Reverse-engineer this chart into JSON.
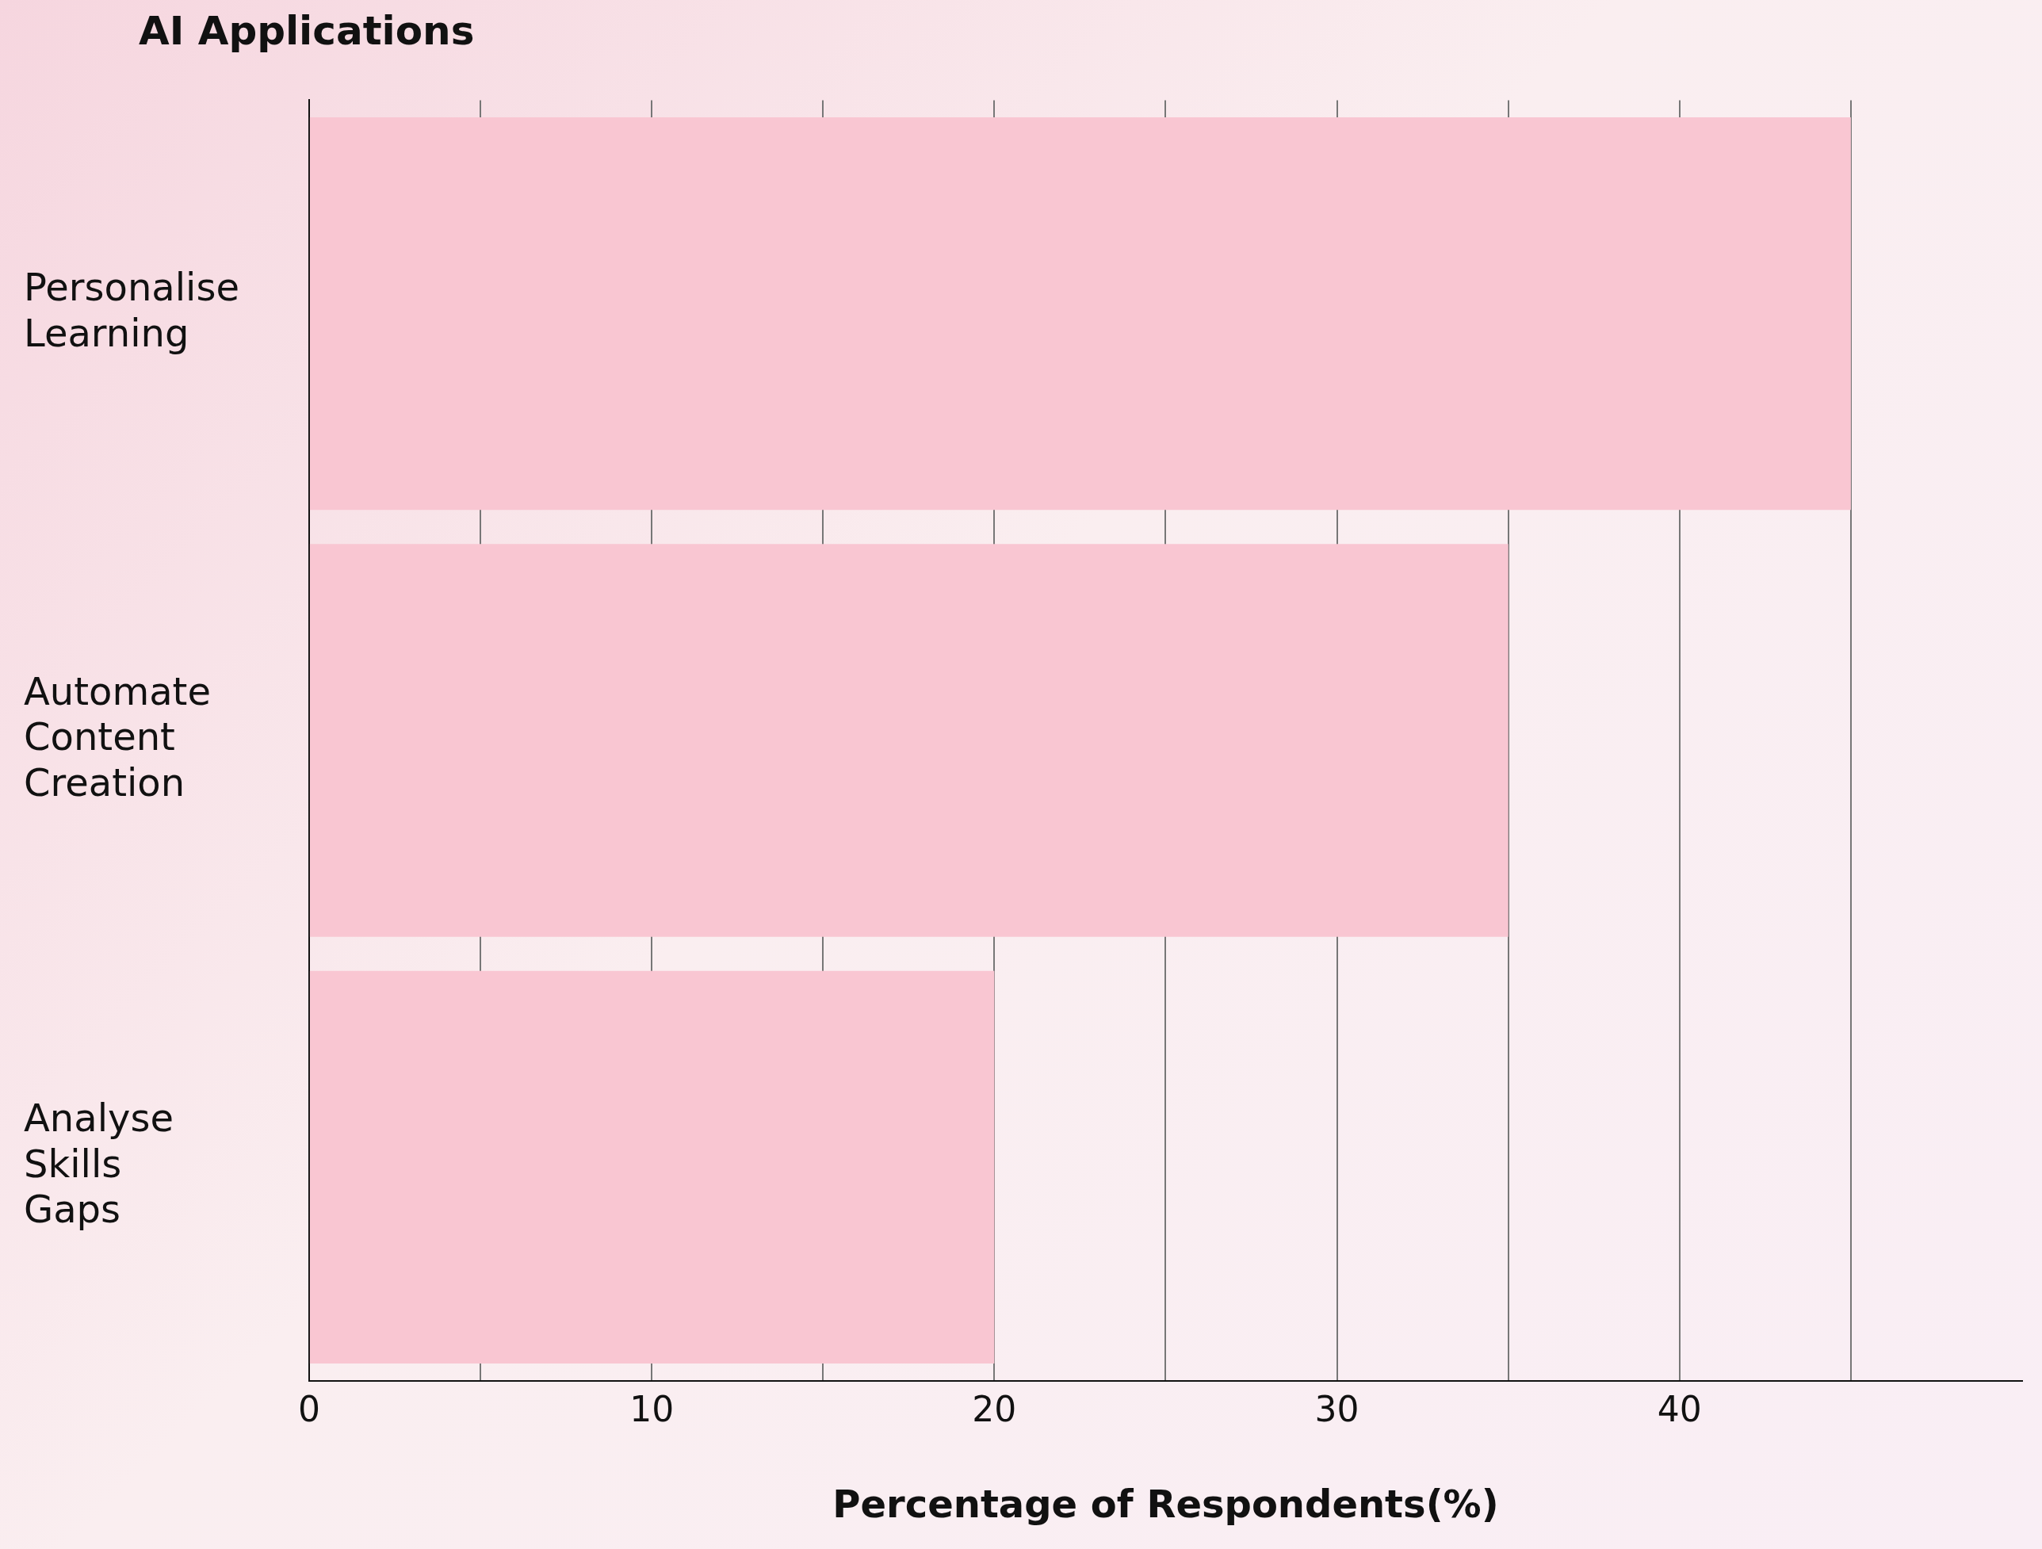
{
  "chart_data": {
    "type": "bar",
    "orientation": "horizontal",
    "ylabel": "AI Applications",
    "xlabel": "Percentage of Respondents(%)",
    "categories": [
      "Personalise Learning",
      "Automate Content Creation",
      "Analyse Skills Gaps"
    ],
    "values": [
      45,
      35,
      20
    ],
    "color": "#f9c6d2",
    "xlim": [
      0,
      50
    ],
    "xticks": [
      0,
      {
        "value": 5,
        "label": null
      },
      10,
      {
        "value": 15,
        "label": null
      },
      20,
      {
        "value": 25,
        "label": null
      },
      30,
      {
        "value": 35,
        "label": null
      },
      40,
      {
        "value": 45,
        "label": null
      }
    ],
    "grid": "x",
    "legend": false
  }
}
